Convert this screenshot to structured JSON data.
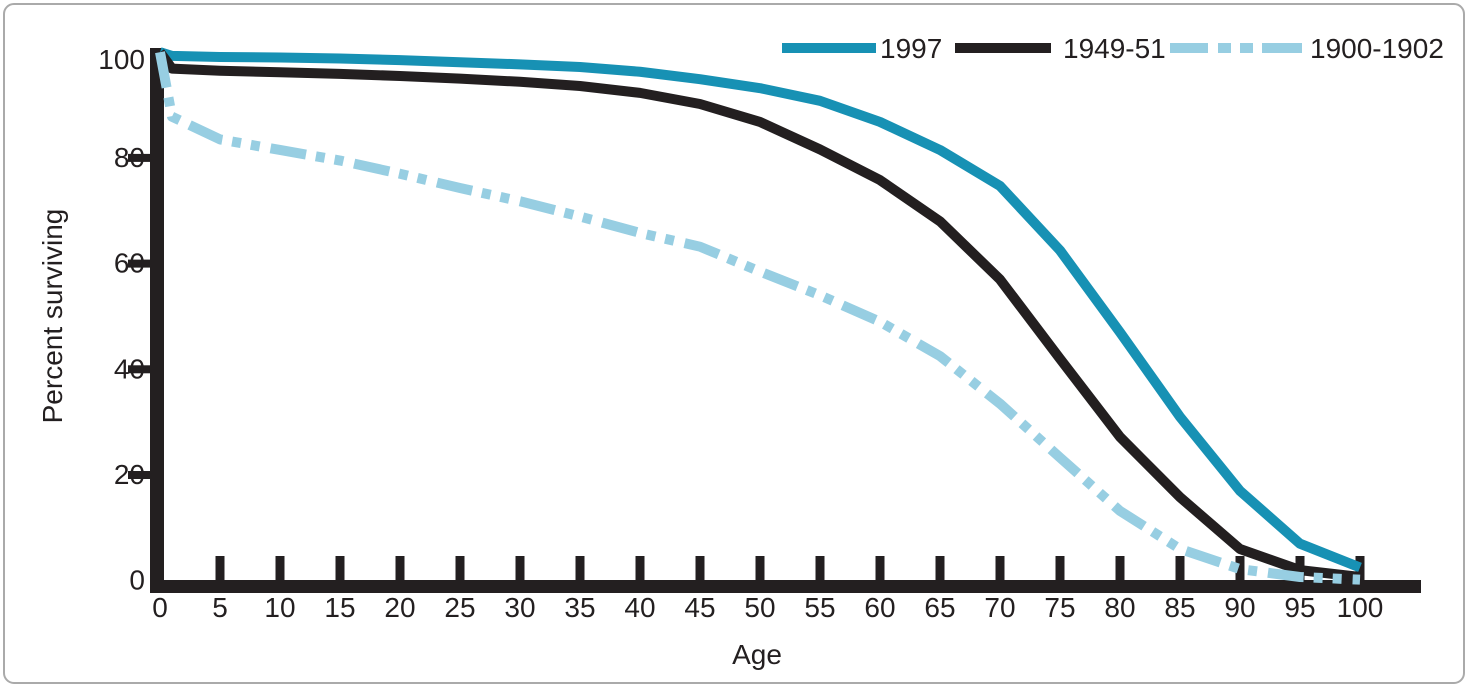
{
  "panel": {
    "background_color": "#ffffff",
    "border_color": "#aaaaaa"
  },
  "axes": {
    "x": {
      "label": "Age"
    },
    "y": {
      "label": "Percent surviving"
    }
  },
  "chart_data": {
    "type": "line",
    "title": "",
    "xlabel": "Age",
    "ylabel": "Percent surviving",
    "xlim": [
      0,
      100
    ],
    "ylim": [
      0,
      100
    ],
    "grid": false,
    "legend_position": "top-right",
    "x_ticks": [
      0,
      5,
      10,
      15,
      20,
      25,
      30,
      35,
      40,
      45,
      50,
      55,
      60,
      65,
      70,
      75,
      80,
      85,
      90,
      95,
      100
    ],
    "y_ticks": [
      0,
      20,
      40,
      60,
      80,
      100
    ],
    "x": [
      0,
      1,
      5,
      10,
      15,
      20,
      25,
      30,
      35,
      40,
      45,
      50,
      55,
      60,
      65,
      70,
      75,
      80,
      85,
      90,
      95,
      100
    ],
    "series": [
      {
        "name": "1997",
        "color": "#1791b4",
        "line_style": "solid",
        "values": [
          100,
          99.3,
          99.1,
          99.0,
          98.8,
          98.5,
          98.1,
          97.7,
          97.2,
          96.3,
          94.9,
          93.2,
          90.8,
          86.8,
          81.5,
          74.7,
          62.5,
          47.0,
          31.0,
          17.0,
          7.0,
          2.5
        ]
      },
      {
        "name": "1949-51",
        "color": "#231f20",
        "line_style": "solid",
        "values": [
          100,
          96.9,
          96.5,
          96.2,
          95.9,
          95.5,
          95.0,
          94.4,
          93.6,
          92.3,
          90.2,
          86.8,
          81.6,
          75.8,
          68.0,
          57.0,
          42.0,
          27.2,
          15.8,
          6.0,
          2.0,
          0.7
        ]
      },
      {
        "name": "1900-1902",
        "color": "#97cee2",
        "line_style": "dash-dot-dot",
        "values": [
          100,
          87.8,
          83.5,
          81.5,
          79.5,
          77.0,
          74.3,
          71.8,
          68.9,
          65.8,
          63.2,
          58.5,
          54.0,
          49.0,
          42.5,
          33.5,
          23.3,
          13.2,
          6.0,
          2.2,
          0.7,
          0.2
        ]
      }
    ]
  }
}
